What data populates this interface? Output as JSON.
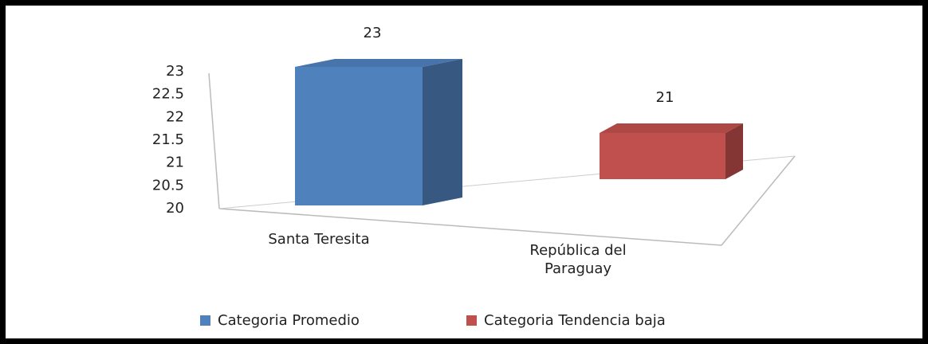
{
  "chart_data": {
    "type": "bar3d",
    "categories": [
      "Santa Teresita",
      "República del Paraguay"
    ],
    "series": [
      {
        "name": "Categoria Promedio",
        "color": "#4f81bd",
        "values": [
          23,
          null
        ]
      },
      {
        "name": "Categoria Tendencia baja",
        "color": "#c0504d",
        "values": [
          null,
          21
        ]
      }
    ],
    "ylim": [
      20,
      23
    ],
    "yticks": [
      20,
      20.5,
      21,
      21.5,
      22,
      22.5,
      23
    ],
    "legend": "bottom"
  }
}
